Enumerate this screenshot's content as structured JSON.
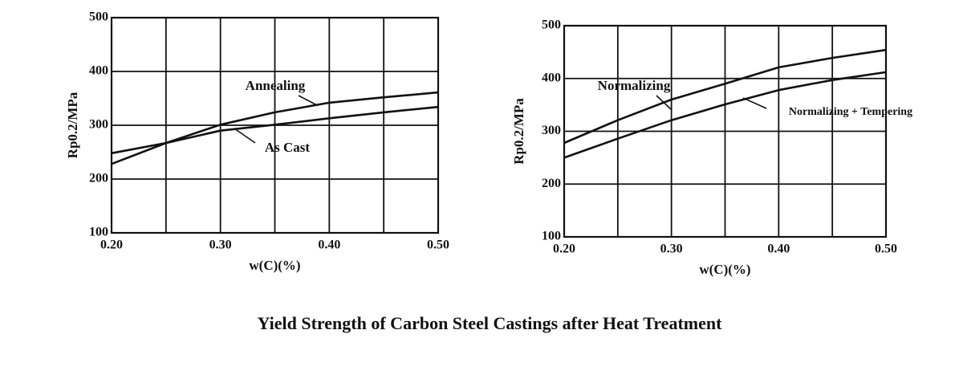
{
  "title": "Yield Strength of Carbon Steel Castings after Heat Treatment",
  "chart_data": [
    {
      "type": "line",
      "xlabel": "w(C)(%)",
      "ylabel": "Rp0.2/MPa",
      "x": [
        0.2,
        0.25,
        0.3,
        0.35,
        0.4,
        0.45,
        0.5
      ],
      "series": [
        {
          "name": "Annealing",
          "color": "#111111",
          "values": [
            228,
            267,
            301,
            324,
            342,
            352,
            361
          ]
        },
        {
          "name": "As Cast",
          "color": "#111111",
          "values": [
            248,
            267,
            290,
            301,
            313,
            324,
            334
          ]
        }
      ],
      "xlim": [
        0.2,
        0.5
      ],
      "xticks": [
        {
          "value": 0.2,
          "label": "0.20"
        },
        {
          "value": 0.25,
          "label": null
        },
        {
          "value": 0.3,
          "label": "0.30"
        },
        {
          "value": 0.35,
          "label": null
        },
        {
          "value": 0.4,
          "label": "0.40"
        },
        {
          "value": 0.45,
          "label": null
        },
        {
          "value": 0.5,
          "label": "0.50"
        }
      ],
      "ylim": [
        100,
        500
      ],
      "yticks": [
        100,
        200,
        300,
        400,
        500
      ],
      "grid": true
    },
    {
      "type": "line",
      "xlabel": "w(C)(%)",
      "ylabel": "Rp0.2/MPa",
      "x": [
        0.2,
        0.25,
        0.3,
        0.35,
        0.4,
        0.45,
        0.5
      ],
      "series": [
        {
          "name": "Normalizing",
          "color": "#111111",
          "values": [
            278,
            321,
            360,
            390,
            421,
            439,
            454
          ]
        },
        {
          "name": "Normalizing + Tempering",
          "color": "#111111",
          "values": [
            250,
            286,
            321,
            351,
            378,
            397,
            412
          ]
        }
      ],
      "xlim": [
        0.2,
        0.5
      ],
      "xticks": [
        {
          "value": 0.2,
          "label": "0.20"
        },
        {
          "value": 0.25,
          "label": null
        },
        {
          "value": 0.3,
          "label": "0.30"
        },
        {
          "value": 0.35,
          "label": null
        },
        {
          "value": 0.4,
          "label": "0.40"
        },
        {
          "value": 0.45,
          "label": null
        },
        {
          "value": 0.5,
          "label": "0.50"
        }
      ],
      "ylim": [
        100,
        500
      ],
      "yticks": [
        100,
        200,
        300,
        400,
        500
      ],
      "grid": true
    }
  ]
}
